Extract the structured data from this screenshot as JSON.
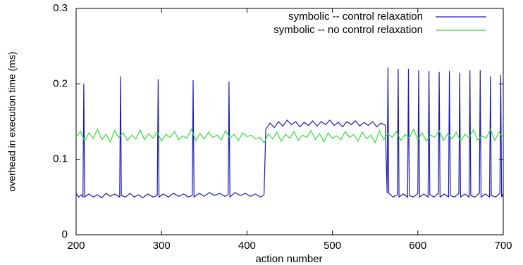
{
  "chart_data": {
    "type": "line",
    "xlabel": "action number",
    "ylabel": "overhead in execution time (ms)",
    "xlim": [
      200,
      700
    ],
    "xticks": [
      200,
      300,
      400,
      500,
      600,
      700
    ],
    "ylim": [
      0,
      0.3
    ],
    "yticks": [
      0,
      0.1,
      0.2,
      0.3
    ],
    "grid": false,
    "legend": "top-right",
    "series": [
      {
        "name": "symbolic -- control relaxation",
        "color": "#1a1ab8",
        "x": [
          200,
          203,
          206,
          208,
          209,
          210,
          215,
          220,
          225,
          230,
          235,
          240,
          245,
          251,
          252,
          253,
          258,
          263,
          268,
          273,
          278,
          284,
          290,
          295,
          296,
          297,
          302,
          308,
          314,
          320,
          326,
          331,
          336,
          337,
          338,
          344,
          350,
          356,
          362,
          368,
          374,
          378,
          379,
          380,
          386,
          392,
          398,
          404,
          410,
          416,
          420,
          422,
          427,
          432,
          437,
          442,
          447,
          452,
          457,
          462,
          467,
          472,
          477,
          482,
          487,
          492,
          497,
          502,
          507,
          512,
          517,
          522,
          527,
          532,
          537,
          542,
          547,
          552,
          557,
          562,
          564,
          565,
          566,
          571,
          576,
          577,
          578,
          583,
          588,
          589,
          590,
          595,
          600,
          601,
          602,
          607,
          612,
          613,
          614,
          619,
          624,
          625,
          626,
          631,
          636,
          637,
          638,
          643,
          648,
          649,
          650,
          655,
          660,
          661,
          662,
          667,
          672,
          673,
          674,
          679,
          684,
          685,
          686,
          691,
          696,
          697,
          698,
          700
        ],
        "values": [
          0.055,
          0.05,
          0.053,
          0.05,
          0.2,
          0.05,
          0.054,
          0.05,
          0.053,
          0.049,
          0.055,
          0.051,
          0.054,
          0.05,
          0.21,
          0.052,
          0.05,
          0.055,
          0.05,
          0.053,
          0.049,
          0.054,
          0.05,
          0.052,
          0.206,
          0.05,
          0.054,
          0.05,
          0.055,
          0.051,
          0.054,
          0.05,
          0.052,
          0.205,
          0.05,
          0.055,
          0.051,
          0.056,
          0.052,
          0.055,
          0.051,
          0.053,
          0.203,
          0.05,
          0.056,
          0.052,
          0.055,
          0.051,
          0.054,
          0.05,
          0.053,
          0.14,
          0.148,
          0.142,
          0.15,
          0.144,
          0.152,
          0.146,
          0.15,
          0.143,
          0.149,
          0.145,
          0.151,
          0.144,
          0.15,
          0.146,
          0.152,
          0.145,
          0.149,
          0.143,
          0.15,
          0.146,
          0.151,
          0.144,
          0.149,
          0.145,
          0.15,
          0.143,
          0.148,
          0.145,
          0.055,
          0.222,
          0.055,
          0.05,
          0.053,
          0.22,
          0.05,
          0.054,
          0.05,
          0.22,
          0.052,
          0.05,
          0.055,
          0.218,
          0.05,
          0.054,
          0.05,
          0.217,
          0.053,
          0.05,
          0.055,
          0.216,
          0.05,
          0.054,
          0.05,
          0.217,
          0.052,
          0.05,
          0.055,
          0.215,
          0.05,
          0.054,
          0.05,
          0.218,
          0.052,
          0.05,
          0.055,
          0.218,
          0.05,
          0.054,
          0.05,
          0.21,
          0.052,
          0.05,
          0.055,
          0.212,
          0.05,
          0.055
        ]
      },
      {
        "name": "symbolic -- no control relaxation",
        "color": "#33e033",
        "x": [
          200,
          205,
          210,
          215,
          220,
          225,
          230,
          235,
          240,
          245,
          250,
          255,
          260,
          265,
          270,
          275,
          280,
          285,
          290,
          295,
          300,
          305,
          310,
          315,
          320,
          325,
          330,
          335,
          340,
          345,
          350,
          355,
          360,
          365,
          370,
          375,
          380,
          385,
          390,
          395,
          400,
          405,
          410,
          415,
          420,
          425,
          430,
          435,
          440,
          445,
          450,
          455,
          460,
          465,
          470,
          475,
          480,
          485,
          490,
          495,
          500,
          505,
          510,
          515,
          520,
          525,
          530,
          535,
          540,
          545,
          550,
          555,
          560,
          565,
          570,
          575,
          580,
          585,
          590,
          595,
          600,
          605,
          610,
          615,
          620,
          625,
          630,
          635,
          640,
          645,
          650,
          655,
          660,
          665,
          670,
          675,
          680,
          685,
          690,
          695,
          700
        ],
        "values": [
          0.13,
          0.137,
          0.124,
          0.135,
          0.128,
          0.14,
          0.126,
          0.133,
          0.123,
          0.138,
          0.129,
          0.135,
          0.125,
          0.132,
          0.127,
          0.139,
          0.126,
          0.134,
          0.128,
          0.136,
          0.124,
          0.133,
          0.129,
          0.137,
          0.126,
          0.131,
          0.128,
          0.14,
          0.125,
          0.134,
          0.127,
          0.136,
          0.129,
          0.132,
          0.126,
          0.138,
          0.128,
          0.133,
          0.125,
          0.135,
          0.13,
          0.132,
          0.127,
          0.129,
          0.122,
          0.134,
          0.127,
          0.136,
          0.124,
          0.133,
          0.128,
          0.137,
          0.125,
          0.132,
          0.129,
          0.138,
          0.126,
          0.134,
          0.123,
          0.135,
          0.128,
          0.131,
          0.126,
          0.137,
          0.129,
          0.133,
          0.124,
          0.136,
          0.127,
          0.132,
          0.122,
          0.138,
          0.126,
          0.134,
          0.129,
          0.137,
          0.125,
          0.133,
          0.128,
          0.14,
          0.126,
          0.135,
          0.124,
          0.132,
          0.129,
          0.138,
          0.125,
          0.134,
          0.127,
          0.136,
          0.124,
          0.133,
          0.129,
          0.139,
          0.126,
          0.131,
          0.128,
          0.14,
          0.125,
          0.136,
          0.129
        ]
      }
    ]
  }
}
